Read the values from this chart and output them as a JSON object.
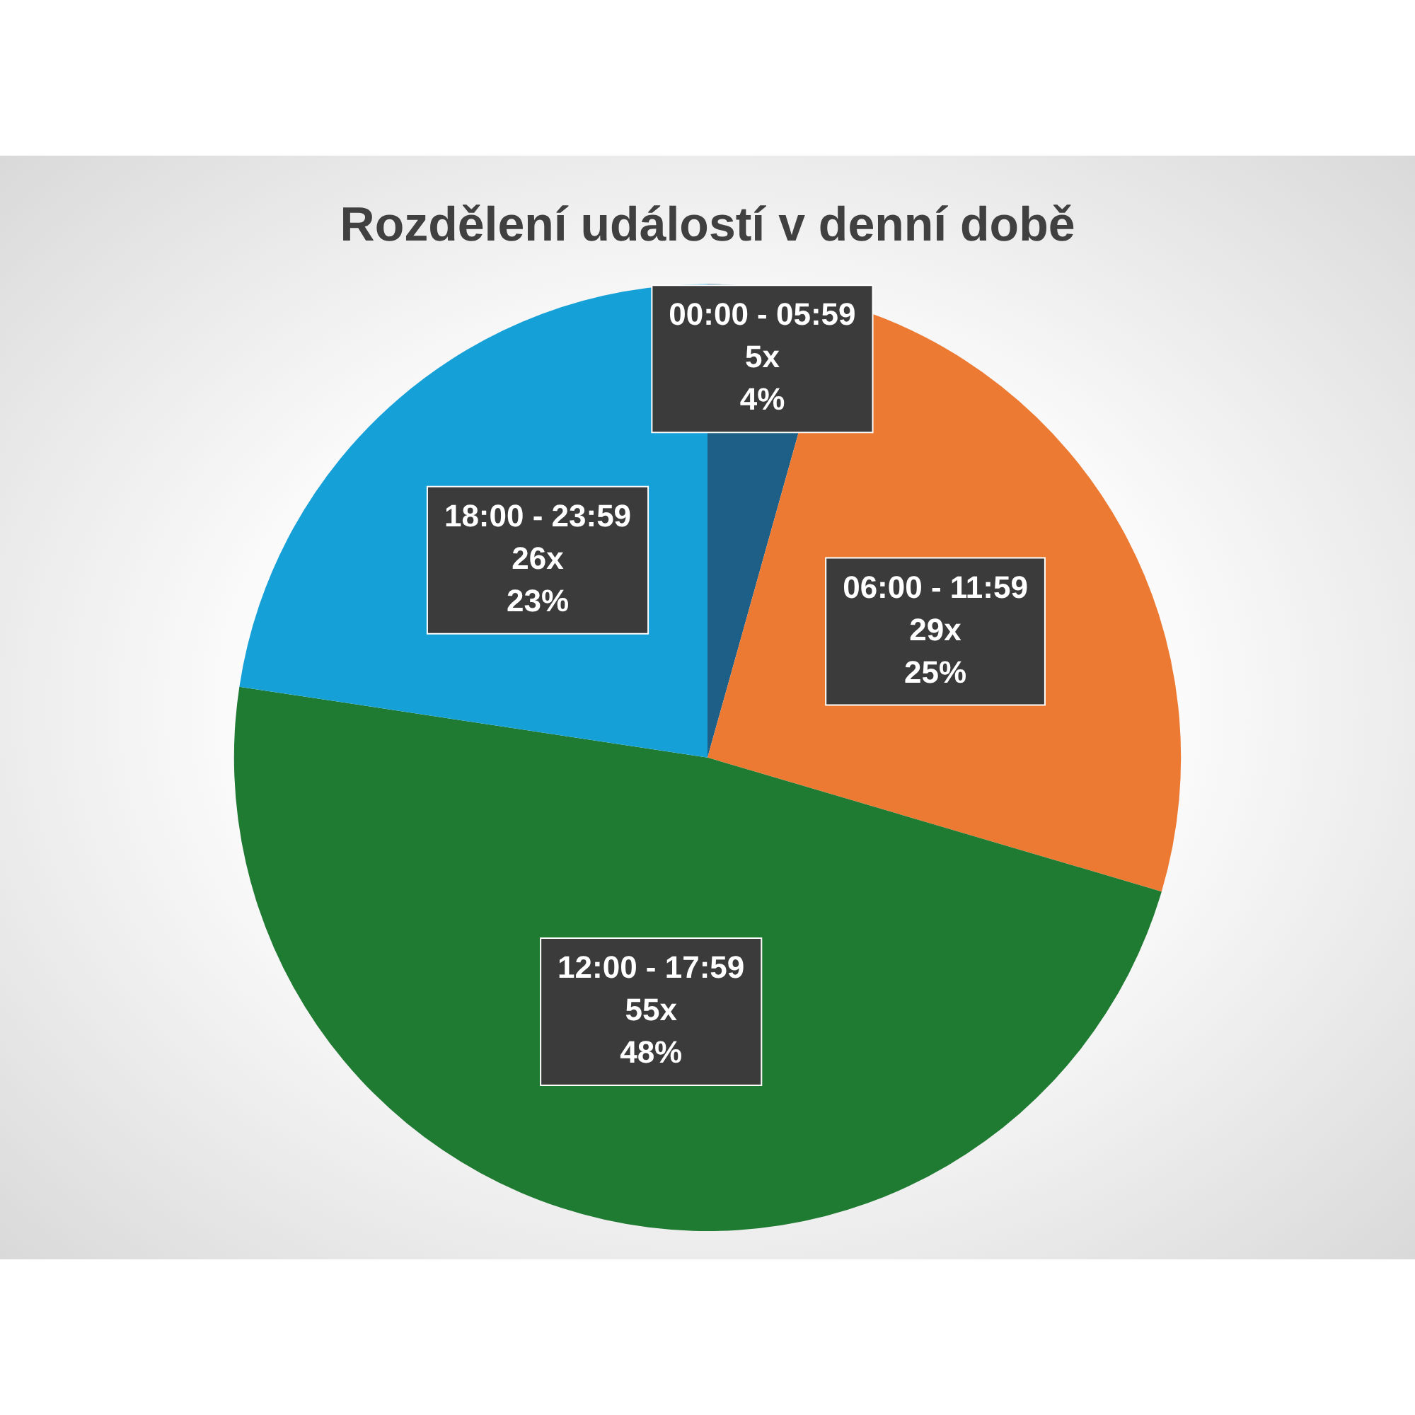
{
  "chart_data": {
    "type": "pie",
    "title": "Rozdělení událostí v denní době",
    "categories": [
      "00:00 - 05:59",
      "06:00 - 11:59",
      "12:00 - 17:59",
      "18:00 - 23:59"
    ],
    "values": [
      5,
      29,
      55,
      26
    ],
    "value_labels": [
      "5x\n4%",
      "29x\n25%",
      "55x\n48%",
      "26x\n23%"
    ],
    "colors": [
      "#1d5f86",
      "#ec7a33",
      "#1f7a32",
      "#15a0d8"
    ],
    "legend": false
  }
}
